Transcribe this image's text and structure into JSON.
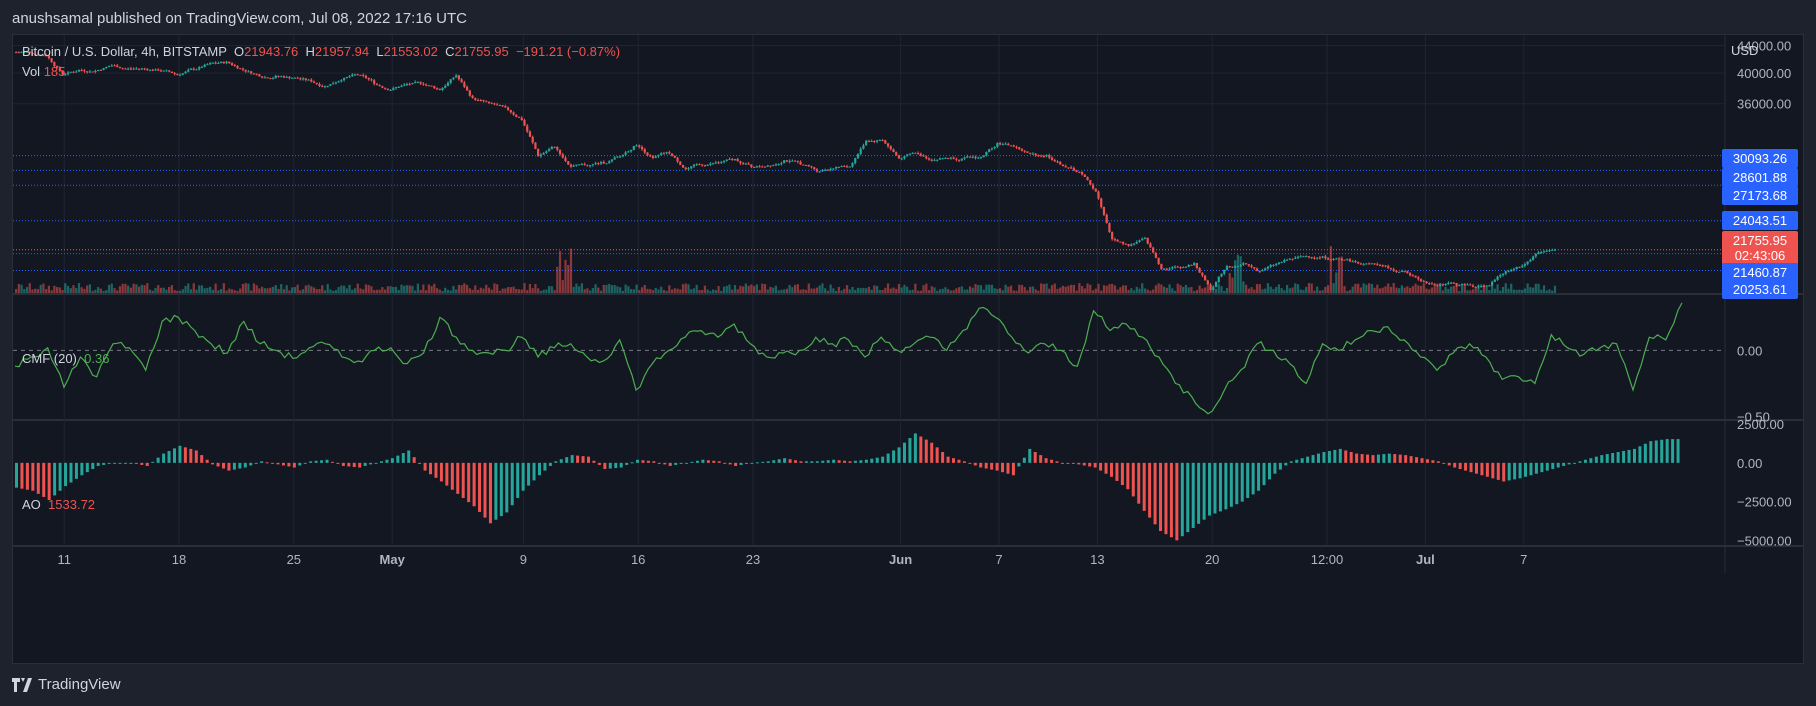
{
  "publisher": "anushsamal published on TradingView.com, Jul 08, 2022 17:16 UTC",
  "legend": {
    "symbol": "Bitcoin / U.S. Dollar, 4h, BITSTAMP",
    "o_label": "O",
    "o_value": "21943.76",
    "h_label": "H",
    "h_value": "21957.94",
    "l_label": "L",
    "l_value": "21553.02",
    "c_label": "C",
    "c_value": "21755.95",
    "change": "−191.21 (−0.87%)"
  },
  "vol": {
    "label": "Vol",
    "value": "185"
  },
  "cmf": {
    "label": "CMF (20)",
    "value": "0.36"
  },
  "ao": {
    "label": "AO",
    "value": "1533.72"
  },
  "currency": "USD",
  "price_tags": [
    {
      "text": "30093.26",
      "color": "#2962ff",
      "price": 30093.26
    },
    {
      "text": "28601.88",
      "color": "#2962ff",
      "price": 28601.88
    },
    {
      "text": "27173.68",
      "color": "#2962ff",
      "price": 27173.68
    },
    {
      "text": "24043.51",
      "color": "#2962ff",
      "price": 24043.51
    },
    {
      "text": "21755.95",
      "color": "#ef5350",
      "price": 21755.95
    },
    {
      "text": "02:43:06",
      "color": "#ef5350",
      "price": 20400
    },
    {
      "text": "21460.87",
      "color": "#2962ff",
      "price": 21460.87
    },
    {
      "text": "20253.61",
      "color": "#2962ff",
      "price": 20253.61
    }
  ],
  "footer": {
    "brand": "TradingView"
  },
  "colors": {
    "up": "#26a69a",
    "down": "#ef5350",
    "cmf_line": "#4caf50",
    "level_line": "#2962ff",
    "grid": "#1f2433",
    "bg": "#131722"
  },
  "chart_data": [
    {
      "type": "candlestick",
      "title": "Bitcoin / U.S. Dollar, 4h, BITSTAMP",
      "x_ticks": [
        "11",
        "18",
        "25",
        "May",
        "9",
        "16",
        "23",
        "Jun",
        "7",
        "13",
        "20",
        "12:00",
        "Jul",
        "7"
      ],
      "x_tick_index": [
        11,
        18,
        25,
        31,
        39,
        46,
        53,
        62,
        68,
        74,
        81,
        88,
        94,
        100
      ],
      "y_ticks": [
        "44000.00",
        "40000.00",
        "36000.00"
      ],
      "y_tick_values": [
        44000,
        40000,
        36000
      ],
      "ylim_log_display": [
        19000,
        45000
      ],
      "levels": [
        30093.26,
        28601.88,
        27173.68,
        24043.51,
        21460.87,
        20253.61
      ],
      "daily_close": [
        {
          "day": 8,
          "close": 43000
        },
        {
          "day": 9,
          "close": 42600
        },
        {
          "day": 10,
          "close": 39900
        },
        {
          "day": 11,
          "close": 40400
        },
        {
          "day": 12,
          "close": 40300
        },
        {
          "day": 13,
          "close": 41100
        },
        {
          "day": 14,
          "close": 40600
        },
        {
          "day": 15,
          "close": 40600
        },
        {
          "day": 16,
          "close": 40400
        },
        {
          "day": 17,
          "close": 39800
        },
        {
          "day": 18,
          "close": 40600
        },
        {
          "day": 19,
          "close": 41300
        },
        {
          "day": 20,
          "close": 41500
        },
        {
          "day": 21,
          "close": 40500
        },
        {
          "day": 22,
          "close": 39700
        },
        {
          "day": 23,
          "close": 39500
        },
        {
          "day": 24,
          "close": 39400
        },
        {
          "day": 25,
          "close": 39000
        },
        {
          "day": 26,
          "close": 38200
        },
        {
          "day": 27,
          "close": 39200
        },
        {
          "day": 28,
          "close": 39800
        },
        {
          "day": 29,
          "close": 38700
        },
        {
          "day": 30,
          "close": 37800
        },
        {
          "day": 31,
          "close": 38500
        },
        {
          "day": 32,
          "close": 38600
        },
        {
          "day": 33,
          "close": 37800
        },
        {
          "day": 34,
          "close": 39700
        },
        {
          "day": 35,
          "close": 36600
        },
        {
          "day": 36,
          "close": 36000
        },
        {
          "day": 37,
          "close": 35400
        },
        {
          "day": 38,
          "close": 34100
        },
        {
          "day": 39,
          "close": 30100
        },
        {
          "day": 40,
          "close": 31100
        },
        {
          "day": 41,
          "close": 28900
        },
        {
          "day": 42,
          "close": 29100
        },
        {
          "day": 43,
          "close": 29400
        },
        {
          "day": 44,
          "close": 30000
        },
        {
          "day": 45,
          "close": 31300
        },
        {
          "day": 46,
          "close": 29800
        },
        {
          "day": 47,
          "close": 30400
        },
        {
          "day": 48,
          "close": 28700
        },
        {
          "day": 49,
          "close": 29200
        },
        {
          "day": 50,
          "close": 29400
        },
        {
          "day": 51,
          "close": 29700
        },
        {
          "day": 52,
          "close": 29000
        },
        {
          "day": 53,
          "close": 29100
        },
        {
          "day": 54,
          "close": 29600
        },
        {
          "day": 55,
          "close": 29300
        },
        {
          "day": 56,
          "close": 28600
        },
        {
          "day": 57,
          "close": 28900
        },
        {
          "day": 58,
          "close": 29000
        },
        {
          "day": 59,
          "close": 31700
        },
        {
          "day": 60,
          "close": 31800
        },
        {
          "day": 61,
          "close": 29800
        },
        {
          "day": 62,
          "close": 30400
        },
        {
          "day": 63,
          "close": 29700
        },
        {
          "day": 64,
          "close": 29900
        },
        {
          "day": 65,
          "close": 29800
        },
        {
          "day": 66,
          "close": 29900
        },
        {
          "day": 67,
          "close": 31400
        },
        {
          "day": 68,
          "close": 31100
        },
        {
          "day": 69,
          "close": 30200
        },
        {
          "day": 70,
          "close": 30100
        },
        {
          "day": 71,
          "close": 29100
        },
        {
          "day": 72,
          "close": 28400
        },
        {
          "day": 73,
          "close": 26600
        },
        {
          "day": 74,
          "close": 22500
        },
        {
          "day": 75,
          "close": 22100
        },
        {
          "day": 76,
          "close": 22600
        },
        {
          "day": 77,
          "close": 20400
        },
        {
          "day": 78,
          "close": 20500
        },
        {
          "day": 79,
          "close": 20700
        },
        {
          "day": 80,
          "close": 19000
        },
        {
          "day": 81,
          "close": 20600
        },
        {
          "day": 82,
          "close": 20700
        },
        {
          "day": 83,
          "close": 20200
        },
        {
          "day": 84,
          "close": 20700
        },
        {
          "day": 85,
          "close": 21100
        },
        {
          "day": 86,
          "close": 21300
        },
        {
          "day": 87,
          "close": 21200
        },
        {
          "day": 88,
          "close": 21000
        },
        {
          "day": 89,
          "close": 20800
        },
        {
          "day": 90,
          "close": 20700
        },
        {
          "day": 91,
          "close": 20300
        },
        {
          "day": 92,
          "close": 20100
        },
        {
          "day": 93,
          "close": 19500
        },
        {
          "day": 94,
          "close": 19300
        },
        {
          "day": 95,
          "close": 19300
        },
        {
          "day": 96,
          "close": 19200
        },
        {
          "day": 97,
          "close": 19300
        },
        {
          "day": 98,
          "close": 20200
        },
        {
          "day": 99,
          "close": 20600
        },
        {
          "day": 100,
          "close": 21600
        },
        {
          "day": 101,
          "close": 21756
        }
      ]
    },
    {
      "type": "line",
      "title": "CMF (20)",
      "y_ticks": [
        "0.00",
        "−0.50"
      ],
      "y_tick_values": [
        0,
        -0.5
      ],
      "ylim": [
        -0.52,
        0.42
      ],
      "values": [
        -0.12,
        -0.05,
        0.02,
        -0.28,
        -0.05,
        -0.2,
        0.05,
        0.02,
        -0.15,
        0.22,
        0.25,
        0.15,
        0.05,
        -0.02,
        0.22,
        0.05,
        0.0,
        -0.06,
        0.02,
        0.05,
        -0.05,
        -0.08,
        0.0,
        0.02,
        -0.1,
        -0.02,
        0.25,
        0.1,
        0.0,
        -0.02,
        0.0,
        0.1,
        -0.05,
        0.02,
        0.05,
        -0.05,
        -0.08,
        0.08,
        -0.3,
        -0.1,
        0.0,
        0.1,
        0.15,
        0.1,
        0.2,
        0.05,
        -0.05,
        -0.02,
        0.0,
        0.1,
        0.05,
        0.08,
        -0.05,
        0.1,
        0.0,
        0.05,
        0.1,
        0.0,
        0.15,
        0.32,
        0.25,
        0.1,
        -0.02,
        0.05,
        0.0,
        -0.12,
        0.3,
        0.15,
        0.2,
        0.1,
        -0.05,
        -0.25,
        -0.35,
        -0.48,
        -0.3,
        -0.15,
        0.05,
        0.0,
        -0.1,
        -0.25,
        0.05,
        0.0,
        0.08,
        0.15,
        0.18,
        0.08,
        -0.05,
        -0.15,
        -0.02,
        0.05,
        -0.05,
        -0.22,
        -0.2,
        -0.25,
        0.12,
        0.02,
        -0.03,
        0.02,
        0.05,
        -0.3,
        0.1,
        0.08,
        0.36
      ]
    },
    {
      "type": "bar",
      "title": "AO",
      "y_ticks": [
        "2500.00",
        "0.00",
        "−2500.00",
        "−5000.00"
      ],
      "y_tick_values": [
        2500,
        0,
        -2500,
        -5000
      ],
      "ylim": [
        -5300,
        2700
      ],
      "values": [
        -1600,
        -1800,
        -2400,
        -1500,
        -800,
        -200,
        0,
        0,
        -200,
        600,
        1100,
        800,
        -100,
        -500,
        -300,
        100,
        -100,
        -300,
        100,
        200,
        -200,
        -300,
        0,
        300,
        800,
        -500,
        -1200,
        -2000,
        -2800,
        -3900,
        -3200,
        -1800,
        -800,
        100,
        500,
        400,
        -400,
        -300,
        200,
        100,
        -200,
        0,
        200,
        100,
        -200,
        0,
        100,
        300,
        100,
        100,
        200,
        100,
        200,
        400,
        1000,
        1900,
        1300,
        400,
        100,
        -300,
        -500,
        -800,
        900,
        300,
        0,
        -100,
        -300,
        -900,
        -1700,
        -3100,
        -4400,
        -5000,
        -4200,
        -3400,
        -3000,
        -2500,
        -1800,
        -700,
        100,
        400,
        700,
        900,
        600,
        500,
        600,
        500,
        300,
        100,
        -300,
        -600,
        -900,
        -1200,
        -1000,
        -700,
        -400,
        -100,
        200,
        500,
        700,
        900,
        1400,
        1533
      ]
    }
  ]
}
